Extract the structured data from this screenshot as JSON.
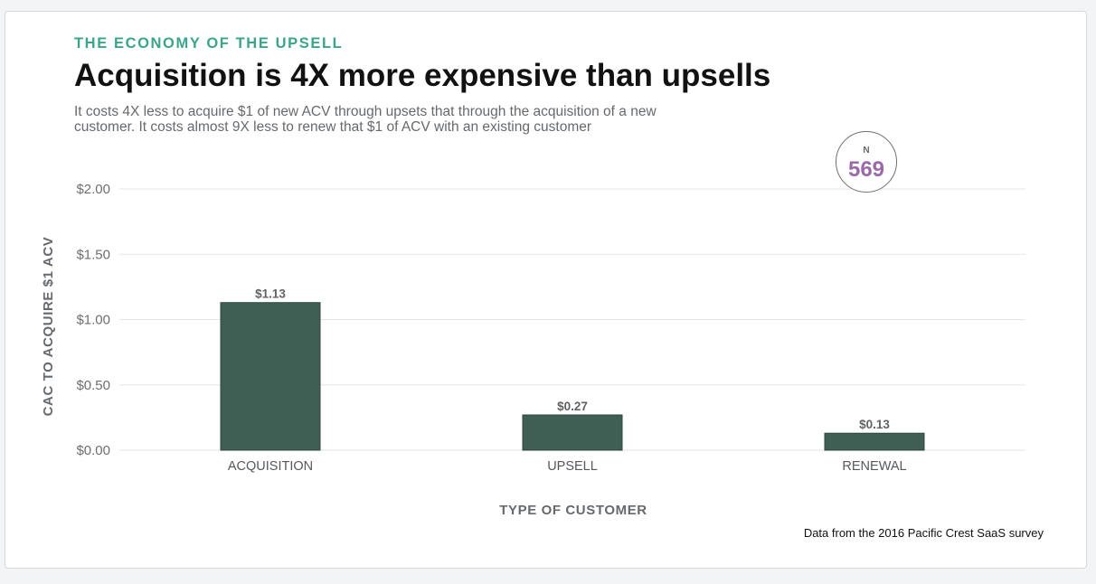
{
  "header": {
    "kicker": "THE ECONOMY OF THE UPSELL",
    "title": "Acquisition is 4X more expensive than upsells",
    "subtitle": "It costs 4X less to acquire $1 of new ACV through upsets that through the acquisition of a new customer. It costs almost 9X less to renew that $1 of ACV with an existing customer"
  },
  "badge": {
    "label": "N",
    "value": "569"
  },
  "source": "Data from the 2016 Pacific Crest SaaS survey",
  "colors": {
    "bar": "#3f5f55",
    "bar_stroke": "#2e463f",
    "grid": "#e3e5e7",
    "accent": "#3aa58a",
    "badge_value": "#9a6aa8"
  },
  "chart_data": {
    "type": "bar",
    "categories": [
      "ACQUISITION",
      "UPSELL",
      "RENEWAL"
    ],
    "values": [
      1.13,
      0.27,
      0.13
    ],
    "data_labels": [
      "$1.13",
      "$0.27",
      "$0.13"
    ],
    "ylim": [
      0,
      2
    ],
    "yticks": [
      0,
      0.5,
      1,
      1.5,
      2
    ],
    "ytick_labels": [
      "$0.00",
      "$0.50",
      "$1.00",
      "$1.50",
      "$2.00"
    ],
    "xlabel": "TYPE OF CUSTOMER",
    "ylabel": "CAC TO ACQUIRE $1 ACV",
    "grid": true
  }
}
